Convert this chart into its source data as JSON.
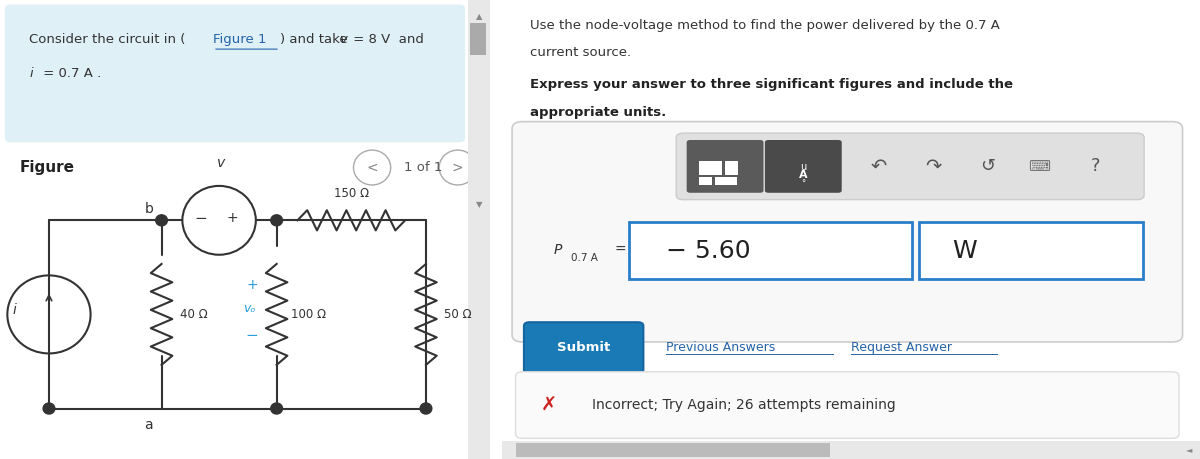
{
  "left_bg_color": "#dff0f7",
  "right_bg_color": "#ffffff",
  "question_line1": "Use the node-voltage method to find the power delivered by the 0.7 A",
  "question_line2": "current source.",
  "bold_line1": "Express your answer to three significant figures and include the",
  "bold_line2": "appropriate units.",
  "answer_value": "− 5.60",
  "answer_units": "W",
  "submit_text": "Submit",
  "prev_answers_text": "Previous Answers",
  "request_answer_text": "Request Answer",
  "incorrect_text": "Incorrect; Try Again; 26 attempts remaining",
  "resistor_40": "40 Ω",
  "resistor_150": "150 Ω",
  "resistor_100": "100 Ω",
  "resistor_50": "50 Ω"
}
